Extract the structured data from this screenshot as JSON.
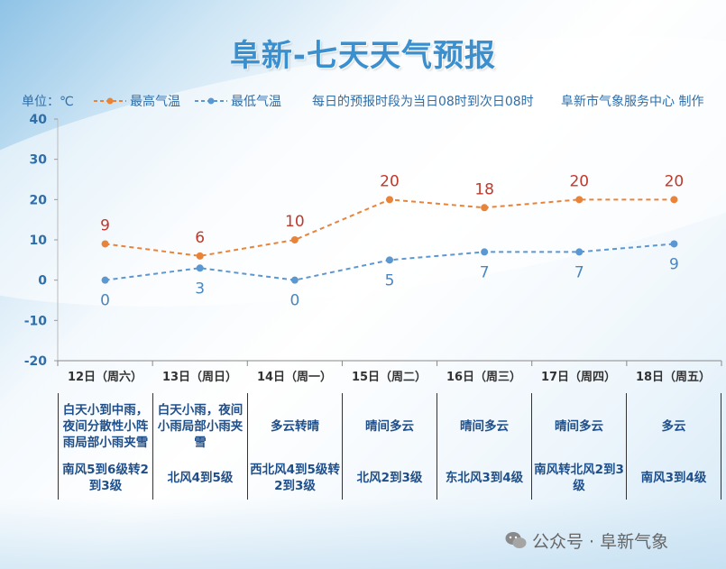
{
  "title": "阜新-七天天气预报",
  "legend": {
    "unit": "单位：℃",
    "high_label": "最高气温",
    "low_label": "最低气温",
    "note": "每日的预报时段为当日08时到次日08时",
    "credit": "阜新市气象服务中心 制作"
  },
  "colors": {
    "high": "#e8843a",
    "low": "#5b97d1",
    "high_label": "#c0392b",
    "low_label": "#4a86c0",
    "title": "#3a8fcf"
  },
  "chart_data": {
    "type": "line",
    "categories": [
      "12日（周六）",
      "13日（周日）",
      "14日（周一）",
      "15日（周二）",
      "16日（周三）",
      "17日（周四）",
      "18日（周五）"
    ],
    "series": [
      {
        "name": "最高气温",
        "values": [
          9,
          6,
          10,
          20,
          18,
          20,
          20
        ]
      },
      {
        "name": "最低气温",
        "values": [
          0,
          3,
          0,
          5,
          7,
          7,
          9
        ]
      }
    ],
    "yticks": [
      40,
      30,
      20,
      10,
      0,
      -10,
      -20
    ],
    "ylim": [
      -20,
      40
    ],
    "ylabel": "单位：℃"
  },
  "days": [
    {
      "weather": "白天小到中雨，夜间分散性小阵雨局部小雨夹雪",
      "wind": "南风5到6级转2到3级"
    },
    {
      "weather": "白天小雨，夜间小雨局部小雨夹雪",
      "wind": "北风4到5级"
    },
    {
      "weather": "多云转晴",
      "wind": "西北风4到5级转2到3级"
    },
    {
      "weather": "晴间多云",
      "wind": "北风2到3级"
    },
    {
      "weather": "晴间多云",
      "wind": "东北风3到4级"
    },
    {
      "weather": "晴间多云",
      "wind": "南风转北风2到3级"
    },
    {
      "weather": "多云",
      "wind": "南风3到4级"
    }
  ],
  "watermark": "公众号 · 阜新气象"
}
